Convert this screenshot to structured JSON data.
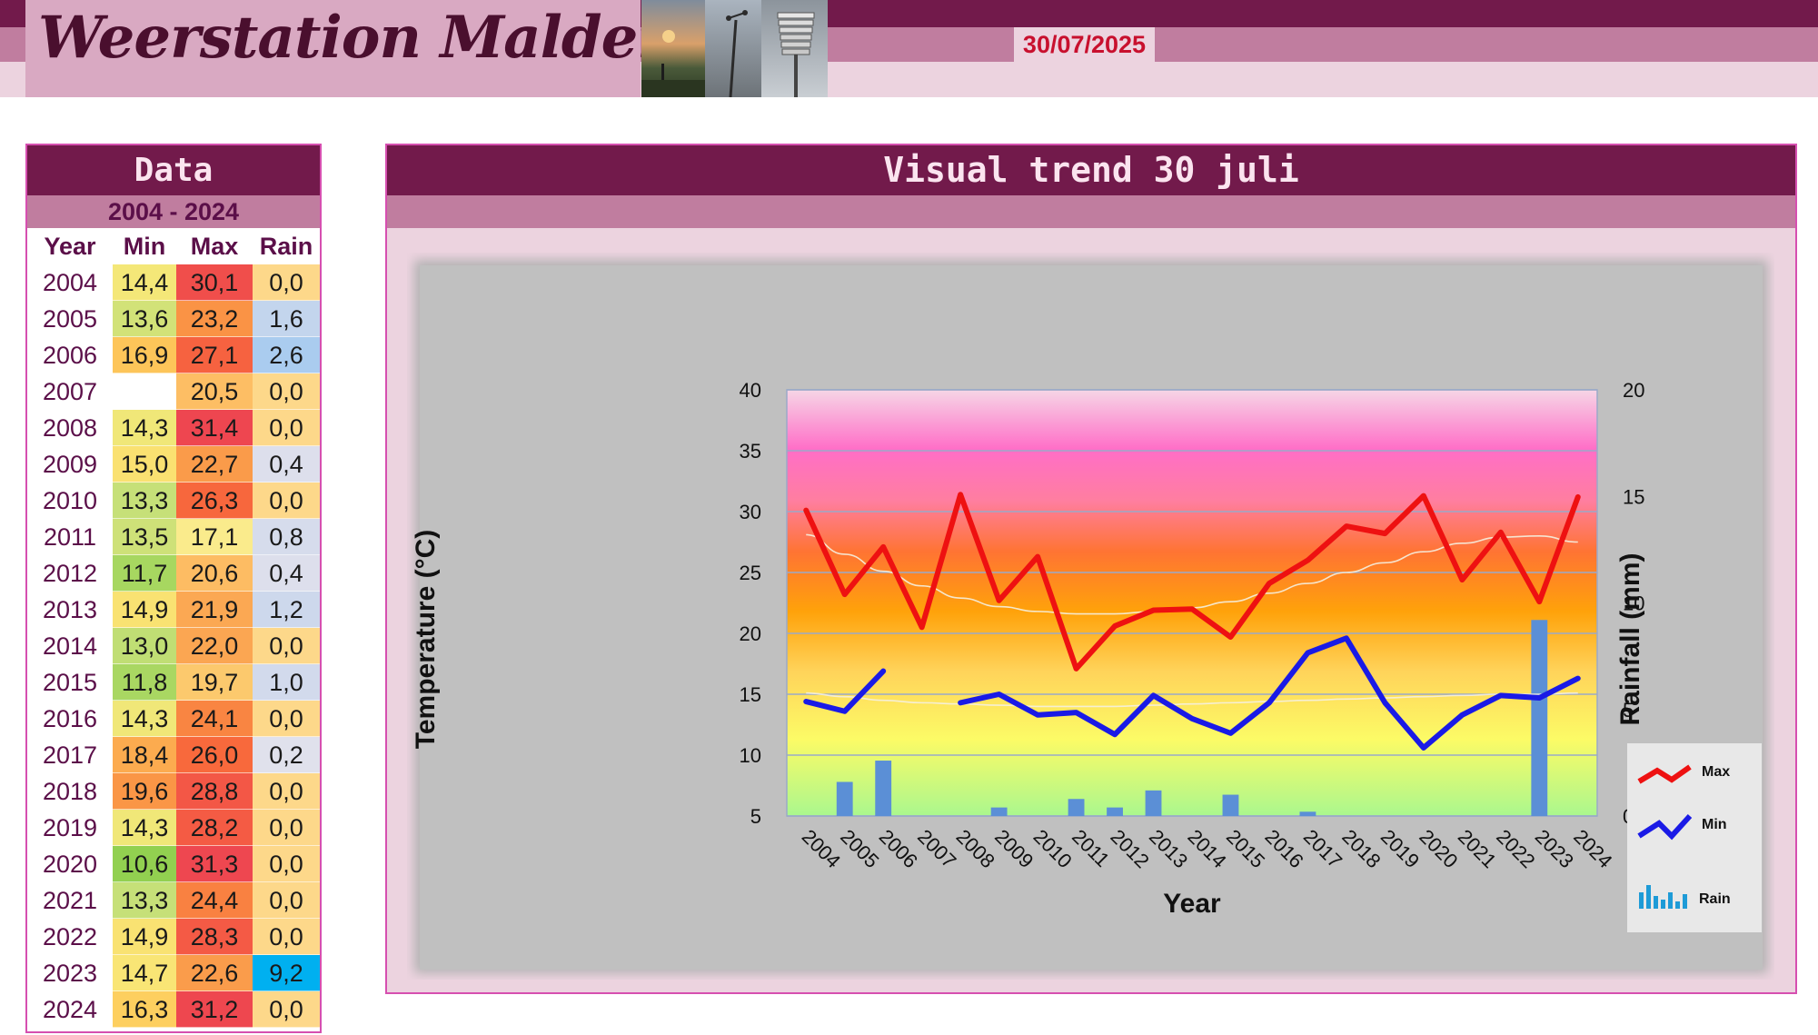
{
  "header": {
    "site_title": "Weerstation Malderen",
    "date": "30/07/2025"
  },
  "data_panel": {
    "title": "Data",
    "range": "2004 - 2024",
    "columns": [
      "Year",
      "Min",
      "Max",
      "Rain"
    ],
    "rows": [
      {
        "year": "2004",
        "min": "14,4",
        "max": "30,1",
        "rain": "0,0"
      },
      {
        "year": "2005",
        "min": "13,6",
        "max": "23,2",
        "rain": "1,6"
      },
      {
        "year": "2006",
        "min": "16,9",
        "max": "27,1",
        "rain": "2,6"
      },
      {
        "year": "2007",
        "min": "",
        "max": "20,5",
        "rain": "0,0"
      },
      {
        "year": "2008",
        "min": "14,3",
        "max": "31,4",
        "rain": "0,0"
      },
      {
        "year": "2009",
        "min": "15,0",
        "max": "22,7",
        "rain": "0,4"
      },
      {
        "year": "2010",
        "min": "13,3",
        "max": "26,3",
        "rain": "0,0"
      },
      {
        "year": "2011",
        "min": "13,5",
        "max": "17,1",
        "rain": "0,8"
      },
      {
        "year": "2012",
        "min": "11,7",
        "max": "20,6",
        "rain": "0,4"
      },
      {
        "year": "2013",
        "min": "14,9",
        "max": "21,9",
        "rain": "1,2"
      },
      {
        "year": "2014",
        "min": "13,0",
        "max": "22,0",
        "rain": "0,0"
      },
      {
        "year": "2015",
        "min": "11,8",
        "max": "19,7",
        "rain": "1,0"
      },
      {
        "year": "2016",
        "min": "14,3",
        "max": "24,1",
        "rain": "0,0"
      },
      {
        "year": "2017",
        "min": "18,4",
        "max": "26,0",
        "rain": "0,2"
      },
      {
        "year": "2018",
        "min": "19,6",
        "max": "28,8",
        "rain": "0,0"
      },
      {
        "year": "2019",
        "min": "14,3",
        "max": "28,2",
        "rain": "0,0"
      },
      {
        "year": "2020",
        "min": "10,6",
        "max": "31,3",
        "rain": "0,0"
      },
      {
        "year": "2021",
        "min": "13,3",
        "max": "24,4",
        "rain": "0,0"
      },
      {
        "year": "2022",
        "min": "14,9",
        "max": "28,3",
        "rain": "0,0"
      },
      {
        "year": "2023",
        "min": "14,7",
        "max": "22,6",
        "rain": "9,2"
      },
      {
        "year": "2024",
        "min": "16,3",
        "max": "31,2",
        "rain": "0,0"
      }
    ]
  },
  "chart_panel": {
    "title": "Visual trend 30 juli"
  },
  "colors": {
    "max_line": "#ee1111",
    "min_line": "#1a1ae6",
    "rain_bar": "#5b8fd6",
    "trend_line": "#f5f0e0",
    "panel_dark": "#721a4b",
    "panel_mid": "#c07d9f",
    "panel_light": "#ecd3df",
    "date_text": "#c8102e"
  },
  "chart_data": {
    "type": "line",
    "x": [
      "2004",
      "2005",
      "2006",
      "2007",
      "2008",
      "2009",
      "2010",
      "2011",
      "2012",
      "2013",
      "2014",
      "2015",
      "2016",
      "2017",
      "2018",
      "2019",
      "2020",
      "2021",
      "2022",
      "2023",
      "2024"
    ],
    "xlabel": "Year",
    "ylabel": "Temperature (°C)",
    "y2label": "Rainfall (mm)",
    "ylim": [
      5,
      40
    ],
    "y2lim": [
      0,
      20
    ],
    "yticks": [
      5,
      10,
      15,
      20,
      25,
      30,
      35,
      40
    ],
    "y2ticks": [
      0,
      5,
      10,
      15,
      20
    ],
    "grid": true,
    "legend_position": "bottom-right",
    "series": [
      {
        "name": "Max",
        "kind": "line",
        "axis": "left",
        "values": [
          30.1,
          23.2,
          27.1,
          20.5,
          31.4,
          22.7,
          26.3,
          17.1,
          20.6,
          21.9,
          22.0,
          19.7,
          24.1,
          26.0,
          28.8,
          28.2,
          31.3,
          24.4,
          28.3,
          22.6,
          31.2
        ]
      },
      {
        "name": "Min",
        "kind": "line",
        "axis": "left",
        "values": [
          14.4,
          13.6,
          16.9,
          null,
          14.3,
          15.0,
          13.3,
          13.5,
          11.7,
          14.9,
          13.0,
          11.8,
          14.3,
          18.4,
          19.6,
          14.3,
          10.6,
          13.3,
          14.9,
          14.7,
          16.3
        ]
      },
      {
        "name": "Rain",
        "kind": "bar",
        "axis": "right",
        "values": [
          0.0,
          1.6,
          2.6,
          0.0,
          0.0,
          0.4,
          0.0,
          0.8,
          0.4,
          1.2,
          0.0,
          1.0,
          0.0,
          0.2,
          0.0,
          0.0,
          0.0,
          0.0,
          0.0,
          9.2,
          0.0
        ]
      }
    ],
    "trend_lines": [
      {
        "of": "Max",
        "values": [
          28.1,
          26.5,
          25.1,
          23.9,
          22.9,
          22.2,
          21.8,
          21.6,
          21.6,
          21.8,
          22.1,
          22.6,
          23.3,
          24.1,
          25.0,
          25.8,
          26.7,
          27.4,
          27.9,
          28.0,
          27.5
        ]
      },
      {
        "of": "Min",
        "values": [
          15.1,
          14.8,
          14.5,
          14.3,
          14.2,
          14.1,
          14.0,
          14.0,
          14.0,
          14.1,
          14.2,
          14.3,
          14.4,
          14.5,
          14.6,
          14.7,
          14.8,
          14.9,
          15.0,
          15.0,
          15.1
        ]
      }
    ]
  }
}
